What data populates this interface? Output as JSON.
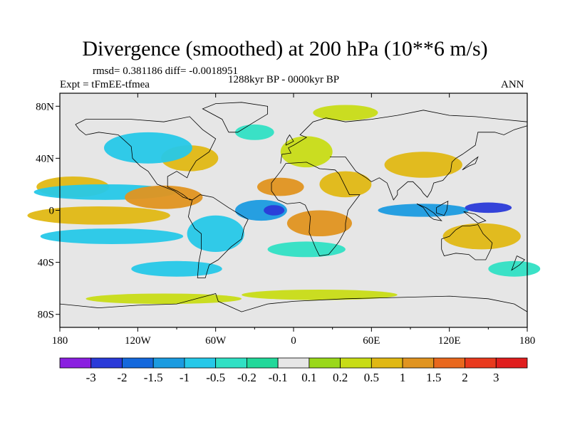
{
  "header": {
    "title": "Divergence (smoothed) at 200 hPa (10**6 m/s)",
    "stats": "rmsd= 0.381186 diff= -0.0018951",
    "experiment": "Expt = tFmEE-tfmea",
    "period": "1288kyr BP - 0000kyr BP",
    "season": "ANN"
  },
  "chart_data": {
    "type": "heatmap",
    "title": "Divergence (smoothed) at 200 hPa (10**6 m/s)",
    "xlabel": "",
    "ylabel": "",
    "xlim": [
      -180,
      180
    ],
    "ylim": [
      -90,
      90
    ],
    "x_ticks": [
      {
        "value": -180,
        "label": "180"
      },
      {
        "value": -120,
        "label": "120W"
      },
      {
        "value": -60,
        "label": "60W"
      },
      {
        "value": 0,
        "label": "0"
      },
      {
        "value": 60,
        "label": "60E"
      },
      {
        "value": 120,
        "label": "120E"
      },
      {
        "value": 180,
        "label": "180"
      }
    ],
    "y_ticks": [
      {
        "value": 80,
        "label": "80N"
      },
      {
        "value": 40,
        "label": "40N"
      },
      {
        "value": 0,
        "label": "0"
      },
      {
        "value": -40,
        "label": "40S"
      },
      {
        "value": -80,
        "label": "80S"
      }
    ],
    "colorbar": {
      "labels": [
        "-3",
        "-2",
        "-1.5",
        "-1",
        "-0.5",
        "-0.2",
        "-0.1",
        "0.1",
        "0.2",
        "0.5",
        "1",
        "1.5",
        "2",
        "3"
      ],
      "colors": [
        "#8a1fe0",
        "#2a3ad8",
        "#1468dc",
        "#1b9be0",
        "#26c8e8",
        "#30e0c4",
        "#22d89a",
        "#e6e6e6",
        "#9ad81a",
        "#c8dc16",
        "#e0b814",
        "#e09420",
        "#e8681e",
        "#e83a1e",
        "#e01e1e"
      ]
    },
    "fields": [
      {
        "lon": -170,
        "lat": 18,
        "value": 0.6,
        "rlon": 28,
        "rlat": 8
      },
      {
        "lon": -145,
        "lat": 14,
        "value": -0.7,
        "rlon": 55,
        "rlat": 6
      },
      {
        "lon": -150,
        "lat": -4,
        "value": 0.9,
        "rlon": 55,
        "rlat": 7
      },
      {
        "lon": -140,
        "lat": -20,
        "value": -0.7,
        "rlon": 55,
        "rlat": 6
      },
      {
        "lon": -100,
        "lat": 10,
        "value": 1.3,
        "rlon": 30,
        "rlat": 9
      },
      {
        "lon": -112,
        "lat": 48,
        "value": -1.0,
        "rlon": 34,
        "rlat": 12
      },
      {
        "lon": -80,
        "lat": 40,
        "value": 0.8,
        "rlon": 22,
        "rlat": 10
      },
      {
        "lon": -60,
        "lat": -18,
        "value": -0.8,
        "rlon": 22,
        "rlat": 14
      },
      {
        "lon": -90,
        "lat": -45,
        "value": -0.7,
        "rlon": 35,
        "rlat": 6
      },
      {
        "lon": -15,
        "lat": 0,
        "value": -2.6,
        "rlon": 8,
        "rlat": 4
      },
      {
        "lon": -25,
        "lat": 0,
        "value": -1.2,
        "rlon": 20,
        "rlat": 8
      },
      {
        "lon": -10,
        "lat": 18,
        "value": 1.4,
        "rlon": 18,
        "rlat": 7
      },
      {
        "lon": 10,
        "lat": 45,
        "value": 0.2,
        "rlon": 20,
        "rlat": 12
      },
      {
        "lon": 40,
        "lat": 20,
        "value": 0.7,
        "rlon": 20,
        "rlat": 10
      },
      {
        "lon": 20,
        "lat": -10,
        "value": 1.1,
        "rlon": 25,
        "rlat": 10
      },
      {
        "lon": 10,
        "lat": -30,
        "value": -0.5,
        "rlon": 30,
        "rlat": 6
      },
      {
        "lon": 100,
        "lat": 0,
        "value": -1.3,
        "rlon": 35,
        "rlat": 5
      },
      {
        "lon": 150,
        "lat": 2,
        "value": -2.2,
        "rlon": 18,
        "rlat": 4
      },
      {
        "lon": 100,
        "lat": 35,
        "value": 0.7,
        "rlon": 30,
        "rlat": 10
      },
      {
        "lon": 145,
        "lat": -20,
        "value": 0.9,
        "rlon": 30,
        "rlat": 10
      },
      {
        "lon": 170,
        "lat": -45,
        "value": -0.4,
        "rlon": 20,
        "rlat": 6
      },
      {
        "lon": -100,
        "lat": -68,
        "value": 0.2,
        "rlon": 60,
        "rlat": 4
      },
      {
        "lon": 20,
        "lat": -65,
        "value": 0.3,
        "rlon": 60,
        "rlat": 4
      },
      {
        "lon": 40,
        "lat": 75,
        "value": 0.3,
        "rlon": 25,
        "rlat": 6
      },
      {
        "lon": -30,
        "lat": 60,
        "value": -0.5,
        "rlon": 15,
        "rlat": 6
      }
    ]
  }
}
